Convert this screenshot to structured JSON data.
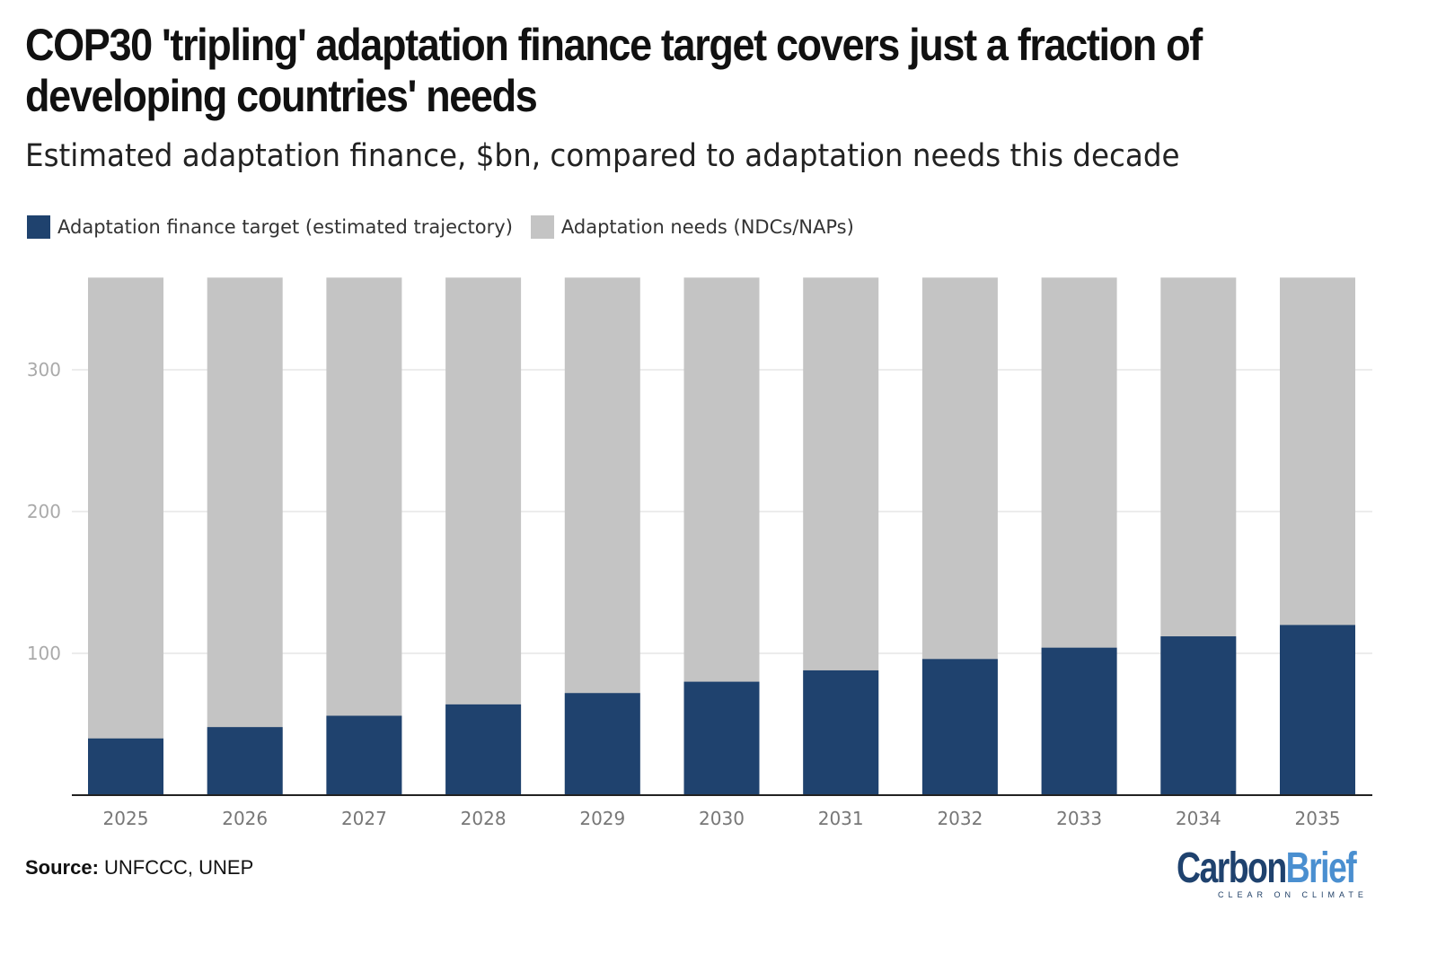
{
  "chart_data": {
    "type": "bar",
    "title": "COP30 'tripling' adaptation finance target covers just a fraction of developing countries' needs",
    "subtitle": "Estimated adaptation finance, $bn, compared to adaptation needs this decade",
    "categories": [
      "2025",
      "2026",
      "2027",
      "2028",
      "2029",
      "2030",
      "2031",
      "2032",
      "2033",
      "2034",
      "2035"
    ],
    "series": [
      {
        "name": "Adaptation finance target (estimated trajectory)",
        "color": "#1f426e",
        "values": [
          40,
          48,
          56,
          64,
          72,
          80,
          88,
          96,
          104,
          112,
          120
        ]
      },
      {
        "name": "Adaptation needs (NDCs/NAPs)",
        "color": "#c4c4c4",
        "values": [
          365,
          365,
          365,
          365,
          365,
          365,
          365,
          365,
          365,
          365,
          365
        ]
      }
    ],
    "ylim": [
      0,
      365
    ],
    "yticks": [
      100,
      200,
      300
    ],
    "grid": true,
    "legend": "top-left",
    "xlabel": "",
    "ylabel": ""
  },
  "source": {
    "label": "Source:",
    "text": " UNFCCC, UNEP"
  },
  "logo": {
    "part1": "Carbon",
    "part2": "Brief",
    "tagline": "CLEAR ON CLIMATE",
    "color1": "#1f426e",
    "color2": "#4a8fd0"
  }
}
